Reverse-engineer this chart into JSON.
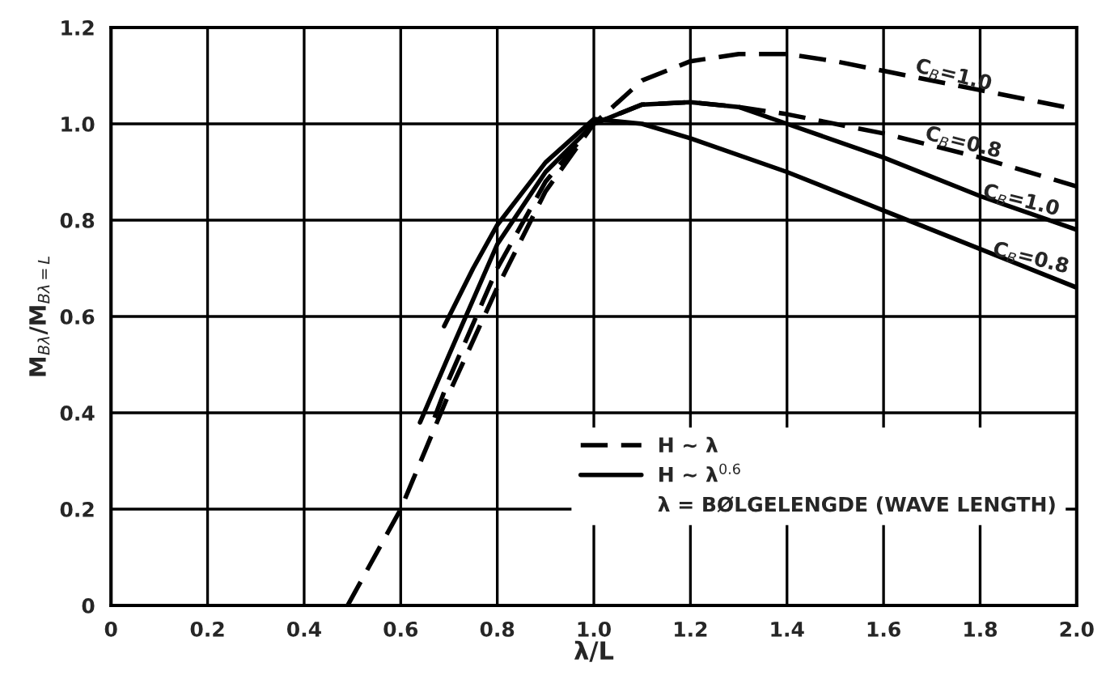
{
  "chart_data": {
    "type": "line",
    "xlabel": "λ/L",
    "ylabel": "M$_{Bλ}$/M$_{Bλ=L}$",
    "xlim": [
      0,
      2
    ],
    "ylim": [
      0,
      1.2
    ],
    "xticks": [
      0,
      0.2,
      0.4,
      0.6,
      0.8,
      {
        "value": 1,
        "label": "1.0"
      },
      1.2,
      1.4,
      1.6,
      1.8,
      {
        "value": 2,
        "label": "2.0"
      }
    ],
    "yticks": [
      0,
      0.2,
      0.4,
      0.6,
      0.8,
      {
        "value": 1,
        "label": "1.0"
      },
      1.2
    ],
    "grid": true,
    "annotations": [
      "H ∼ λ",
      "H ∼ λ$^{0.6}$",
      "λ = BØLGELENGDE (WAVE LENGTH)",
      {
        "text": "C$_{B}$=1.0",
        "x": 1.74,
        "y": 1.08
      },
      {
        "text": "C$_{B}$=0.8",
        "x": 1.76,
        "y": 0.94
      },
      {
        "text": "C$_{B}$=1.0",
        "x": 1.88,
        "y": 0.82
      },
      {
        "text": "C$_{B}$=0.8",
        "x": 1.9,
        "y": 0.7
      }
    ],
    "series": [
      {
        "color": "#000000",
        "line_style": "dashed",
        "x": [
          0.49,
          0.6,
          0.7,
          0.8,
          0.9,
          1.0,
          1.1,
          1.2,
          1.3,
          1.4,
          1.5,
          1.6,
          1.7,
          1.8,
          1.9,
          2.0
        ],
        "values": [
          0,
          0.2,
          0.44,
          0.66,
          0.86,
          1.0,
          1.09,
          1.13,
          1.145,
          1.145,
          1.13,
          1.11,
          1.09,
          1.07,
          1.05,
          1.03
        ]
      },
      {
        "color": "#000000",
        "line_style": "dashed",
        "x": [
          0.67,
          0.7,
          0.8,
          0.9,
          1.0,
          1.1,
          1.2,
          1.3,
          1.4,
          1.6,
          1.8,
          2.0
        ],
        "values": [
          0.39,
          0.47,
          0.7,
          0.88,
          1.0,
          1.04,
          1.045,
          1.035,
          1.02,
          0.98,
          0.93,
          0.87
        ]
      },
      {
        "color": "#000000",
        "line_style": "solid",
        "x": [
          0.64,
          0.7,
          0.8,
          0.9,
          1.0,
          1.1,
          1.2,
          1.3,
          1.4,
          1.6,
          1.8,
          2.0
        ],
        "values": [
          0.38,
          0.52,
          0.75,
          0.9,
          1.0,
          1.04,
          1.045,
          1.035,
          1.0,
          0.93,
          0.85,
          0.78
        ]
      },
      {
        "color": "#000000",
        "line_style": "solid",
        "x": [
          0.69,
          0.75,
          0.8,
          0.9,
          1.0,
          1.1,
          1.2,
          1.4,
          1.6,
          1.8,
          2.0
        ],
        "values": [
          0.58,
          0.7,
          0.79,
          0.92,
          1.01,
          1.0,
          0.97,
          0.9,
          0.82,
          0.74,
          0.66
        ]
      }
    ]
  }
}
